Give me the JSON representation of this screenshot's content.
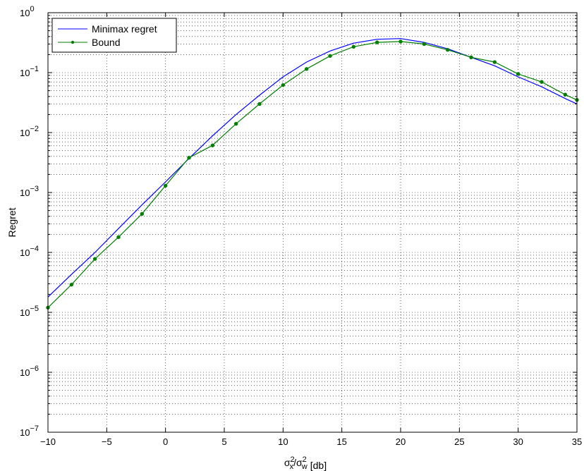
{
  "chart_data": {
    "type": "line",
    "title": "",
    "xlabel": {
      "base": "σ",
      "x_sub": "x",
      "sup": "2",
      "w_sub": "w",
      "unit": "[db]"
    },
    "ylabel": "Regret",
    "xlim": [
      -10,
      35
    ],
    "ylim": [
      1e-07,
      1
    ],
    "yscale": "log",
    "grid": "on",
    "legend_position": "top-left",
    "x_ticks": [
      -10,
      -5,
      0,
      5,
      10,
      15,
      20,
      25,
      30,
      35
    ],
    "y_ticks": [
      {
        "base": "10",
        "exp": "0",
        "value": 1
      },
      {
        "base": "10",
        "exp": "-1",
        "value": 0.1
      },
      {
        "base": "10",
        "exp": "-2",
        "value": 0.01
      },
      {
        "base": "10",
        "exp": "-3",
        "value": 0.001
      },
      {
        "base": "10",
        "exp": "-4",
        "value": 0.0001
      },
      {
        "base": "10",
        "exp": "-5",
        "value": 1e-05
      },
      {
        "base": "10",
        "exp": "-6",
        "value": 1e-06
      },
      {
        "base": "10",
        "exp": "-7",
        "value": 1e-07
      }
    ],
    "series": [
      {
        "name": "Minimax regret",
        "color": "#0000ff",
        "marker": "none",
        "x": [
          -10,
          -8,
          -6,
          -4,
          -2,
          0,
          2,
          4,
          6,
          8,
          10,
          12,
          14,
          16,
          18,
          20,
          22,
          24,
          26,
          28,
          30,
          32,
          34,
          35
        ],
        "y": [
          1.8e-05,
          4.3e-05,
          0.0001,
          0.00025,
          0.00062,
          0.0015,
          0.0037,
          0.0088,
          0.02,
          0.042,
          0.085,
          0.15,
          0.23,
          0.31,
          0.36,
          0.37,
          0.32,
          0.25,
          0.18,
          0.13,
          0.085,
          0.058,
          0.037,
          0.03
        ]
      },
      {
        "name": "Bound",
        "color": "#007f00",
        "marker": "dot",
        "x": [
          -10,
          -8,
          -6,
          -4,
          -2,
          0,
          2,
          4,
          6,
          8,
          10,
          12,
          14,
          16,
          18,
          20,
          22,
          24,
          26,
          28,
          30,
          32,
          34,
          35
        ],
        "y": [
          1.2e-05,
          2.9e-05,
          7.8e-05,
          0.00018,
          0.00044,
          0.0013,
          0.0038,
          0.0061,
          0.014,
          0.03,
          0.062,
          0.115,
          0.19,
          0.27,
          0.32,
          0.33,
          0.3,
          0.24,
          0.18,
          0.15,
          0.095,
          0.07,
          0.043,
          0.035
        ]
      }
    ]
  }
}
